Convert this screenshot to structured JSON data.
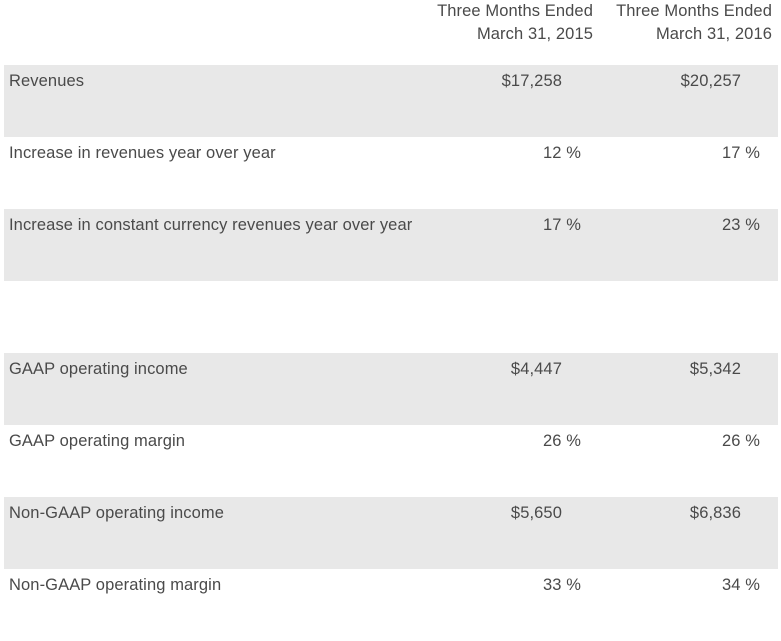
{
  "headers": {
    "col1_line1": "Three Months Ended",
    "col1_line2": "March 31, 2015",
    "col2_line1": "Three Months Ended",
    "col2_line2": "March 31, 2016"
  },
  "rows": [
    {
      "label": "Revenues",
      "v1": "$17,258",
      "v2": "$20,257"
    },
    {
      "label": "Increase in revenues year over year",
      "v1": "12 %",
      "v2": "17 %"
    },
    {
      "label": "Increase in constant currency revenues year over year",
      "v1": "17 %",
      "v2": "23 %"
    },
    {
      "label": "",
      "v1": "",
      "v2": ""
    },
    {
      "label": "GAAP operating income",
      "v1": "$4,447",
      "v2": "$5,342"
    },
    {
      "label": "GAAP operating margin",
      "v1": "26 %",
      "v2": "26 %"
    },
    {
      "label": "Non-GAAP operating income",
      "v1": "$5,650",
      "v2": "$6,836"
    },
    {
      "label": "Non-GAAP operating margin",
      "v1": "33 %",
      "v2": "34 %"
    }
  ]
}
